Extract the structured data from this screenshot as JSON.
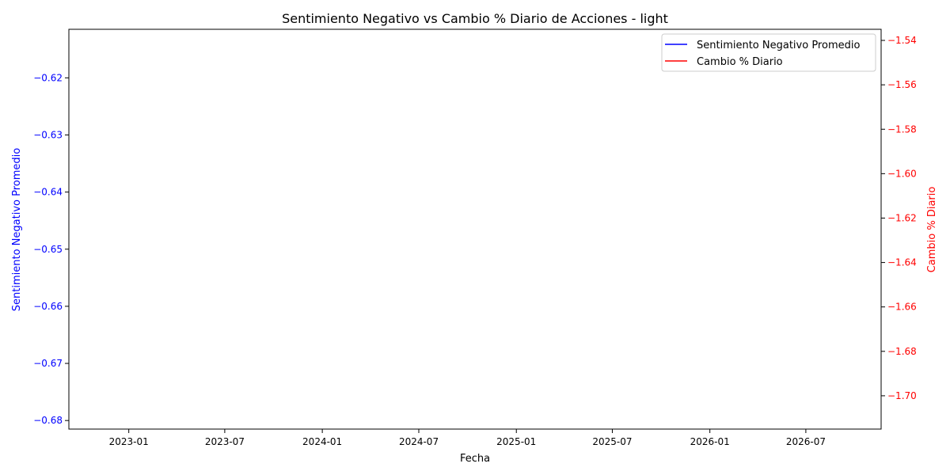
{
  "chart_data": {
    "type": "line",
    "title": "Sentimiento Negativo vs Cambio % Diario de Acciones - light",
    "xlabel": "Fecha",
    "ylabel_left": "Sentimiento Negativo Promedio",
    "ylabel_right": "Cambio % Diario",
    "x_ticks": [
      "2023-01",
      "2023-07",
      "2024-01",
      "2024-07",
      "2025-01",
      "2025-07",
      "2026-01",
      "2026-07"
    ],
    "y_left_ticks": [
      "−0.62",
      "−0.63",
      "−0.64",
      "−0.65",
      "−0.66",
      "−0.67",
      "−0.68"
    ],
    "y_right_ticks": [
      "−1.54",
      "−1.56",
      "−1.58",
      "−1.60",
      "−1.62",
      "−1.64",
      "−1.66",
      "−1.68",
      "−1.70"
    ],
    "ylim_left": [
      -0.6815,
      -0.6115
    ],
    "ylim_right": [
      -1.715,
      -1.535
    ],
    "legend_position": "upper right",
    "grid": false,
    "series": [
      {
        "name": "Sentimiento Negativo Promedio",
        "color": "#0000ff",
        "axis": "left",
        "values": []
      },
      {
        "name": "Cambio % Diario",
        "color": "#ff0000",
        "axis": "right",
        "values": []
      }
    ],
    "colors": {
      "left_axis": "#0000ff",
      "right_axis": "#ff0000",
      "frame": "#000000"
    }
  }
}
